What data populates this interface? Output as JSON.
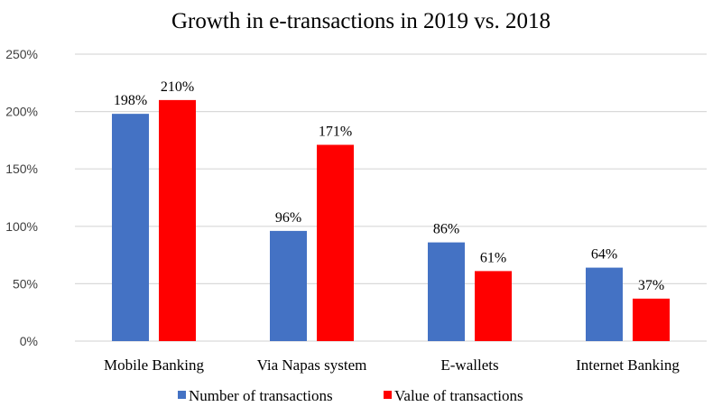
{
  "chart_data": {
    "type": "bar",
    "title": "Growth in e-transactions in 2019 vs. 2018",
    "xlabel": "",
    "ylabel": "",
    "categories": [
      "Mobile Banking",
      "Via Napas system",
      "E-wallets",
      "Internet Banking"
    ],
    "series": [
      {
        "name": "Number of transactions",
        "color": "#4472C4",
        "values": [
          198,
          96,
          86,
          64
        ],
        "labels": [
          "198%",
          "96%",
          "86%",
          "64%"
        ]
      },
      {
        "name": "Value of transactions",
        "color": "#FF0000",
        "values": [
          210,
          171,
          61,
          37
        ],
        "labels": [
          "210%",
          "171%",
          "61%",
          "37%"
        ]
      }
    ],
    "ylim": [
      0,
      250
    ],
    "yticks": [
      0,
      50,
      100,
      150,
      200,
      250
    ],
    "ytick_labels": [
      "0%",
      "50%",
      "100%",
      "150%",
      "200%",
      "250%"
    ],
    "grid": true,
    "legend_position": "bottom"
  }
}
